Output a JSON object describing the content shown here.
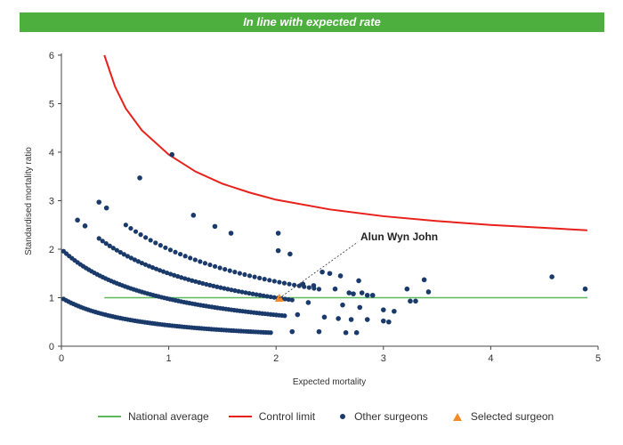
{
  "banner": {
    "text": "In line with expected rate",
    "color": "#4caf3e"
  },
  "legend": {
    "national": "National average",
    "control": "Control limit",
    "others": "Other surgeons",
    "selected": "Selected surgeon"
  },
  "chart_data": {
    "type": "scatter",
    "xlabel": "Expected mortality",
    "ylabel": "Standardised mortality ratio",
    "xlim": [
      0,
      5
    ],
    "ylim": [
      0,
      6
    ],
    "xticks": [
      "0",
      "1",
      "2",
      "3",
      "4",
      "5"
    ],
    "yticks": [
      "0",
      "1",
      "2",
      "3",
      "4",
      "5",
      "6"
    ],
    "grid": false,
    "legend_position": "bottom",
    "colors": {
      "national": "#5cb85c",
      "control": "#e8201a",
      "others": "#1a3a6b",
      "selected": "#f28c28"
    },
    "national_average": {
      "y": 1,
      "x_range": [
        0.4,
        4.9
      ]
    },
    "control_limit": {
      "x": [
        0.4,
        0.5,
        0.6,
        0.75,
        1.0,
        1.25,
        1.5,
        1.75,
        2.0,
        2.5,
        3.0,
        3.5,
        4.0,
        4.5,
        4.9
      ],
      "y": [
        6.0,
        5.35,
        4.9,
        4.45,
        3.95,
        3.6,
        3.35,
        3.17,
        3.02,
        2.82,
        2.68,
        2.58,
        2.5,
        2.44,
        2.39
      ]
    },
    "selected_surgeon": {
      "name": "Alun Wyn John",
      "x": 2.03,
      "y": 0.99
    },
    "other_surgeons": {
      "bands": [
        {
          "deaths": 1,
          "x_range": [
            0.02,
            1.95
          ],
          "count": 85
        },
        {
          "deaths": 2,
          "x_range": [
            0.02,
            2.08
          ],
          "count": 80
        },
        {
          "deaths": 3,
          "x_range": [
            0.35,
            2.15
          ],
          "count": 55
        },
        {
          "deaths": 4,
          "x_range": [
            0.6,
            2.4
          ],
          "count": 40
        }
      ],
      "points": [
        {
          "x": 1.03,
          "y": 3.95
        },
        {
          "x": 0.73,
          "y": 3.47
        },
        {
          "x": 0.35,
          "y": 2.97
        },
        {
          "x": 0.42,
          "y": 2.85
        },
        {
          "x": 1.23,
          "y": 2.7
        },
        {
          "x": 1.43,
          "y": 2.47
        },
        {
          "x": 1.58,
          "y": 2.33
        },
        {
          "x": 2.02,
          "y": 2.33
        },
        {
          "x": 0.15,
          "y": 2.6
        },
        {
          "x": 0.22,
          "y": 2.48
        },
        {
          "x": 2.02,
          "y": 1.97
        },
        {
          "x": 2.13,
          "y": 1.9
        },
        {
          "x": 2.25,
          "y": 1.28
        },
        {
          "x": 2.35,
          "y": 1.25
        },
        {
          "x": 2.43,
          "y": 1.53
        },
        {
          "x": 2.5,
          "y": 1.5
        },
        {
          "x": 2.55,
          "y": 1.18
        },
        {
          "x": 2.6,
          "y": 1.45
        },
        {
          "x": 2.68,
          "y": 1.1
        },
        {
          "x": 2.72,
          "y": 1.08
        },
        {
          "x": 2.77,
          "y": 1.35
        },
        {
          "x": 2.8,
          "y": 1.1
        },
        {
          "x": 2.85,
          "y": 0.55
        },
        {
          "x": 2.9,
          "y": 1.05
        },
        {
          "x": 2.62,
          "y": 0.85
        },
        {
          "x": 2.45,
          "y": 0.6
        },
        {
          "x": 2.3,
          "y": 0.9
        },
        {
          "x": 2.7,
          "y": 0.55
        },
        {
          "x": 2.75,
          "y": 0.28
        },
        {
          "x": 2.4,
          "y": 0.3
        },
        {
          "x": 2.78,
          "y": 0.8
        },
        {
          "x": 2.2,
          "y": 0.65
        },
        {
          "x": 3.0,
          "y": 0.75
        },
        {
          "x": 3.05,
          "y": 0.5
        },
        {
          "x": 3.1,
          "y": 0.72
        },
        {
          "x": 3.0,
          "y": 0.52
        },
        {
          "x": 3.22,
          "y": 1.18
        },
        {
          "x": 3.25,
          "y": 0.93
        },
        {
          "x": 3.3,
          "y": 0.93
        },
        {
          "x": 3.38,
          "y": 1.37
        },
        {
          "x": 3.42,
          "y": 1.12
        },
        {
          "x": 4.57,
          "y": 1.43
        },
        {
          "x": 4.88,
          "y": 1.18
        },
        {
          "x": 2.15,
          "y": 0.3
        },
        {
          "x": 2.85,
          "y": 1.05
        },
        {
          "x": 2.58,
          "y": 0.57
        },
        {
          "x": 2.65,
          "y": 0.28
        }
      ]
    }
  }
}
